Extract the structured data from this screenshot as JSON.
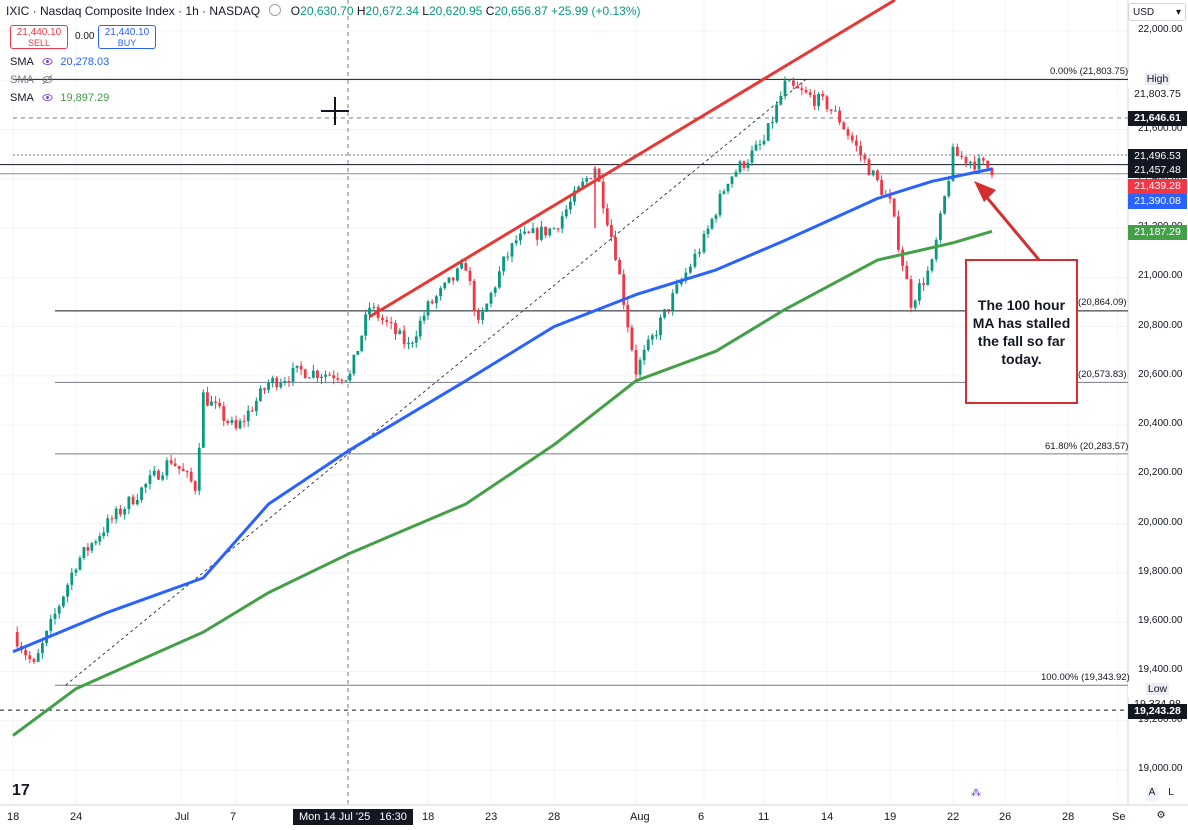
{
  "header": {
    "symbol": "IXIC · Nasdaq Composite Index · 1h · NASDAQ",
    "open": "20,630.70",
    "high": "20,672.34",
    "low": "20,620.95",
    "close": "20,656.87",
    "change": "+25.99 (+0.13%)"
  },
  "trade": {
    "sell_price": "21,440.10",
    "sell_label": "SELL",
    "spread": "0.00",
    "buy_price": "21,440.10",
    "buy_label": "BUY"
  },
  "indicators": [
    {
      "label": "SMA",
      "value": "20,278.03",
      "icon": "eye-icon"
    },
    {
      "label": "SMA",
      "value": "",
      "icon": "eye-off-icon"
    },
    {
      "label": "SMA",
      "value": "19,897.29",
      "icon": "eye-icon"
    }
  ],
  "currency": "USD",
  "annotation": "The 100 hour MA has stalled the fall so far today.",
  "price_tags": {
    "high_label": "High",
    "high_value": "21,803.75",
    "t1": "21,646.61",
    "t2": "21,496.53",
    "t3": "21,457.48",
    "t4": "21,439.28",
    "t5": "21,390.08",
    "t6": "21,187.29",
    "low_label": "Low",
    "low_value": "19,334.98",
    "t7": "19,243.28"
  },
  "fib_labels": {
    "f0": "0.00% (21,803.75)",
    "f1": "(20,864.09)",
    "f2": "(20,573.83)",
    "f3": "61.80% (20,283.57)",
    "f4": "100.00% (19,343.92)"
  },
  "x_highlight": {
    "date": "Mon 14 Jul '25",
    "time": "16:30"
  },
  "colors": {
    "up": "#089981",
    "down": "#f23645",
    "sma100": "#2962ff",
    "sma200": "#43a047",
    "trend": "#e53935"
  },
  "chart_data": {
    "type": "line",
    "title": "IXIC · Nasdaq Composite Index · 1h · NASDAQ",
    "y_ticks": [
      19000,
      19200,
      19400,
      19600,
      19800,
      20000,
      20200,
      20400,
      20600,
      20800,
      21000,
      21200,
      21400,
      21600,
      21800,
      22000
    ],
    "y_tick_labels": [
      "19,000.00",
      "19,200.00",
      "19,400.00",
      "19,600.00",
      "19,800.00",
      "20,000.00",
      "20,200.00",
      "20,400.00",
      "20,600.00",
      "20,800.00",
      "21,000.00",
      "21,200.00",
      "21,400.00",
      "21,600.00",
      "21,800.00",
      "22,000.00"
    ],
    "ylim": [
      18880,
      22100
    ],
    "x_ticks": [
      "18",
      "24",
      "Jul",
      "7",
      "14",
      "18",
      "23",
      "28",
      "Aug",
      "6",
      "11",
      "14",
      "19",
      "22",
      "26",
      "28",
      "Se"
    ],
    "price_path": [
      {
        "x": "Jun 18",
        "y": 19560
      },
      {
        "x": "Jun 20",
        "y": 19420
      },
      {
        "x": "Jun 24",
        "y": 19840
      },
      {
        "x": "Jun 26",
        "y": 20000
      },
      {
        "x": "Jun 30",
        "y": 20260
      },
      {
        "x": "Jul 2",
        "y": 20150
      },
      {
        "x": "Jul 3",
        "y": 20520
      },
      {
        "x": "Jul 7",
        "y": 20380
      },
      {
        "x": "Jul 9",
        "y": 20570
      },
      {
        "x": "Jul 11",
        "y": 20620
      },
      {
        "x": "Jul 14",
        "y": 20600
      },
      {
        "x": "Jul 15",
        "y": 20880
      },
      {
        "x": "Jul 17",
        "y": 20720
      },
      {
        "x": "Jul 18",
        "y": 20880
      },
      {
        "x": "Jul 21",
        "y": 21050
      },
      {
        "x": "Jul 22",
        "y": 20800
      },
      {
        "x": "Jul 24",
        "y": 21060
      },
      {
        "x": "Jul 25",
        "y": 21150
      },
      {
        "x": "Jul 28",
        "y": 21200
      },
      {
        "x": "Jul 30",
        "y": 21450
      },
      {
        "x": "Jul 31",
        "y": 21100
      },
      {
        "x": "Aug 1",
        "y": 20620
      },
      {
        "x": "Aug 4",
        "y": 20950
      },
      {
        "x": "Aug 6",
        "y": 21150
      },
      {
        "x": "Aug 8",
        "y": 21400
      },
      {
        "x": "Aug 11",
        "y": 21550
      },
      {
        "x": "Aug 12",
        "y": 21780
      },
      {
        "x": "Aug 14",
        "y": 21700
      },
      {
        "x": "Aug 15",
        "y": 21640
      },
      {
        "x": "Aug 19",
        "y": 21300
      },
      {
        "x": "Aug 20",
        "y": 20900
      },
      {
        "x": "Aug 21",
        "y": 21050
      },
      {
        "x": "Aug 22",
        "y": 21500
      },
      {
        "x": "Aug 25",
        "y": 21440
      }
    ],
    "series": [
      {
        "name": "SMA",
        "values": [
          {
            "x": "Jun 18",
            "y": 19480
          },
          {
            "x": "Jun 26",
            "y": 19640
          },
          {
            "x": "Jul 3",
            "y": 19780
          },
          {
            "x": "Jul 9",
            "y": 20080
          },
          {
            "x": "Jul 14",
            "y": 20300
          },
          {
            "x": "Jul 21",
            "y": 20580
          },
          {
            "x": "Jul 28",
            "y": 20800
          },
          {
            "x": "Aug 1",
            "y": 20930
          },
          {
            "x": "Aug 7",
            "y": 21030
          },
          {
            "x": "Aug 12",
            "y": 21150
          },
          {
            "x": "Aug 18",
            "y": 21320
          },
          {
            "x": "Aug 21",
            "y": 21390
          },
          {
            "x": "Aug 25",
            "y": 21440
          }
        ]
      },
      {
        "name": "SMA",
        "values": [
          {
            "x": "Jun 18",
            "y": 19140
          },
          {
            "x": "Jun 24",
            "y": 19330
          },
          {
            "x": "Jul 3",
            "y": 19560
          },
          {
            "x": "Jul 9",
            "y": 19720
          },
          {
            "x": "Jul 14",
            "y": 19880
          },
          {
            "x": "Jul 21",
            "y": 20080
          },
          {
            "x": "Jul 28",
            "y": 20320
          },
          {
            "x": "Aug 1",
            "y": 20580
          },
          {
            "x": "Aug 7",
            "y": 20700
          },
          {
            "x": "Aug 12",
            "y": 20870
          },
          {
            "x": "Aug 18",
            "y": 21070
          },
          {
            "x": "Aug 22",
            "y": 21140
          },
          {
            "x": "Aug 25",
            "y": 21187
          }
        ]
      }
    ],
    "horizontal_levels": [
      21803.75,
      21646.61,
      21496.53,
      21457.48,
      20864.09,
      20573.83,
      20283.57,
      19343.92,
      19243.28
    ],
    "trendline": [
      {
        "x": "Jul 15",
        "y": 20840
      },
      {
        "x": "Jul 30",
        "y": 21450
      },
      {
        "x": "Aug 19",
        "y": 22200
      }
    ],
    "fib_line": [
      {
        "x": "Jun 23",
        "y": 19344
      },
      {
        "x": "Aug 13",
        "y": 21804
      }
    ]
  }
}
